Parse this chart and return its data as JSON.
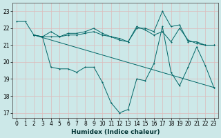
{
  "xlabel": "Humidex (Indice chaleur)",
  "bg_color": "#cce8e8",
  "line_color": "#006666",
  "grid_color": "#ddbbbb",
  "xlim": [
    -0.5,
    23.5
  ],
  "ylim": [
    16.7,
    23.5
  ],
  "yticks": [
    17,
    18,
    19,
    20,
    21,
    22,
    23
  ],
  "xticks": [
    0,
    1,
    2,
    3,
    4,
    5,
    6,
    7,
    8,
    9,
    10,
    11,
    12,
    13,
    14,
    15,
    16,
    17,
    18,
    19,
    20,
    21,
    22,
    23
  ],
  "line1_x": [
    0,
    1,
    2,
    3,
    4,
    5,
    6,
    7,
    8,
    9,
    10,
    11,
    12,
    13,
    14,
    15,
    16,
    17,
    18,
    19,
    20,
    21,
    22,
    23
  ],
  "line1_y": [
    22.4,
    22.4,
    21.6,
    21.5,
    19.7,
    19.6,
    19.6,
    19.4,
    19.7,
    19.7,
    18.8,
    17.6,
    17.0,
    17.2,
    19.0,
    18.9,
    19.9,
    22.1,
    19.4,
    18.6,
    19.7,
    20.9,
    19.8,
    18.5
  ],
  "line2_x": [
    2,
    23
  ],
  "line2_y": [
    21.6,
    18.5
  ],
  "line3_x": [
    2,
    3,
    4,
    5,
    6,
    7,
    8,
    9,
    10,
    11,
    12,
    13,
    14,
    15,
    16,
    17,
    18,
    19,
    20,
    21,
    22,
    23
  ],
  "line3_y": [
    21.6,
    21.5,
    21.5,
    21.5,
    21.6,
    21.6,
    21.7,
    21.8,
    21.6,
    21.5,
    21.3,
    21.2,
    22.0,
    22.0,
    21.8,
    23.0,
    22.1,
    22.2,
    21.2,
    21.2,
    21.0,
    21.0
  ],
  "line4_x": [
    2,
    3,
    4,
    5,
    6,
    7,
    8,
    9,
    10,
    11,
    12,
    13,
    14,
    15,
    16,
    17,
    18,
    19,
    20,
    21,
    22,
    23
  ],
  "line4_y": [
    21.6,
    21.5,
    21.8,
    21.5,
    21.7,
    21.7,
    21.8,
    22.0,
    21.7,
    21.5,
    21.4,
    21.2,
    22.1,
    21.9,
    21.6,
    21.8,
    21.2,
    22.0,
    21.3,
    21.1,
    21.0,
    21.0
  ]
}
